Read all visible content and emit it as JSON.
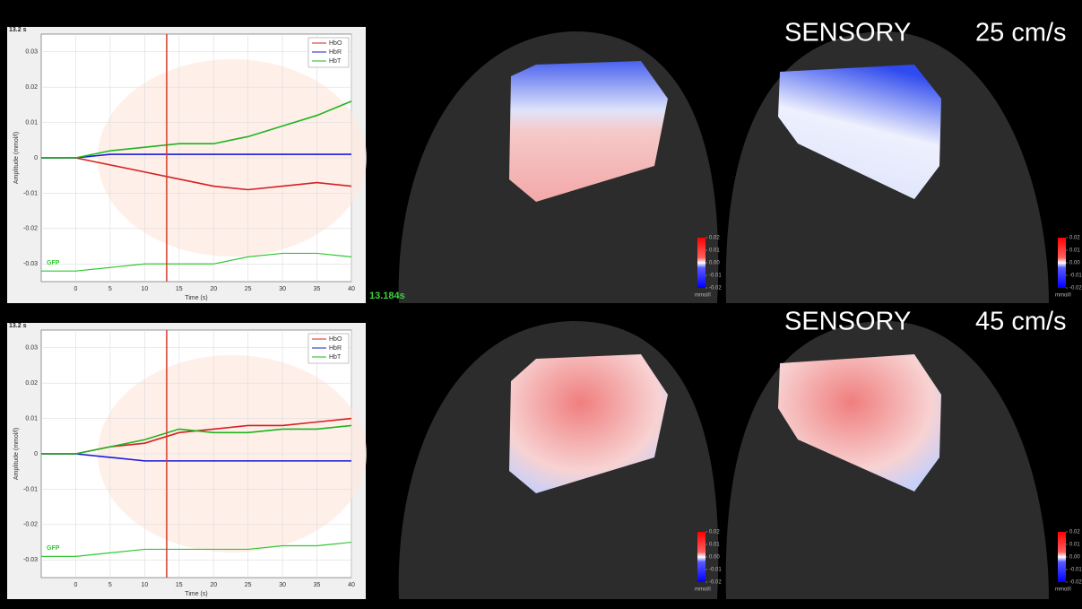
{
  "chart_data": [
    {
      "type": "line",
      "ylabel": "Amplitude (mmol/l)",
      "xlabel": "Time (s)",
      "marker": {
        "value": 13.2,
        "label": "13.2 s"
      },
      "x": [
        -5,
        0,
        5,
        10,
        15,
        20,
        25,
        30,
        35,
        40
      ],
      "xlim": [
        -5,
        40
      ],
      "xticks": [
        0,
        5,
        10,
        15,
        20,
        25,
        30,
        35,
        40
      ],
      "ylim": [
        -0.035,
        0.035
      ],
      "yticks": [
        0.03,
        0.02,
        0.01,
        0,
        -0.01,
        -0.02,
        -0.03
      ],
      "grid": true,
      "series": [
        {
          "name": "HbO",
          "color": "#d62020",
          "values": [
            0,
            0,
            -0.002,
            -0.004,
            -0.006,
            -0.008,
            -0.009,
            -0.008,
            -0.007,
            -0.008
          ]
        },
        {
          "name": "HbR",
          "color": "#1a1ad8",
          "values": [
            0,
            0,
            0.001,
            0.001,
            0.001,
            0.001,
            0.001,
            0.001,
            0.001,
            0.001
          ]
        },
        {
          "name": "HbT",
          "color": "#1eb41e",
          "values": [
            0,
            0,
            0.002,
            0.003,
            0.004,
            0.004,
            0.006,
            0.009,
            0.012,
            0.016
          ]
        }
      ],
      "gfp": {
        "name": "GFP",
        "color": "#32c832",
        "values": [
          -0.032,
          -0.032,
          -0.031,
          -0.03,
          -0.03,
          -0.03,
          -0.028,
          -0.027,
          -0.027,
          -0.028
        ]
      }
    },
    {
      "type": "line",
      "ylabel": "Amplitude (mmol/l)",
      "xlabel": "Time (s)",
      "marker": {
        "value": 13.2,
        "label": "13.2 s"
      },
      "x": [
        -5,
        0,
        5,
        10,
        15,
        20,
        25,
        30,
        35,
        40
      ],
      "xlim": [
        -5,
        40
      ],
      "xticks": [
        0,
        5,
        10,
        15,
        20,
        25,
        30,
        35,
        40
      ],
      "ylim": [
        -0.035,
        0.035
      ],
      "yticks": [
        0.03,
        0.02,
        0.01,
        0,
        -0.01,
        -0.02,
        -0.03
      ],
      "grid": true,
      "series": [
        {
          "name": "HbO",
          "color": "#d62020",
          "values": [
            0,
            0,
            0.002,
            0.003,
            0.006,
            0.007,
            0.008,
            0.008,
            0.009,
            0.01
          ]
        },
        {
          "name": "HbR",
          "color": "#1a1ad8",
          "values": [
            0,
            0,
            -0.001,
            -0.002,
            -0.002,
            -0.002,
            -0.002,
            -0.002,
            -0.002,
            -0.002
          ]
        },
        {
          "name": "HbT",
          "color": "#1eb41e",
          "values": [
            0,
            0,
            0.002,
            0.004,
            0.007,
            0.006,
            0.006,
            0.007,
            0.007,
            0.008
          ]
        }
      ],
      "gfp": {
        "name": "GFP",
        "color": "#32c832",
        "values": [
          -0.029,
          -0.029,
          -0.028,
          -0.027,
          -0.027,
          -0.027,
          -0.027,
          -0.026,
          -0.026,
          -0.025
        ]
      }
    }
  ],
  "timestamp": "13.184s",
  "panels": [
    {
      "label": "SENSORY",
      "speed": "25 cm/s"
    },
    {
      "label": "SENSORY",
      "speed": "45 cm/s"
    }
  ],
  "colorbar": {
    "lim": [
      -0.02,
      0.02
    ],
    "ticks": [
      0.02,
      0.01,
      {
        "value": 0,
        "label": "0.00"
      },
      -0.01,
      -0.02
    ],
    "unit": "mmol/l"
  }
}
